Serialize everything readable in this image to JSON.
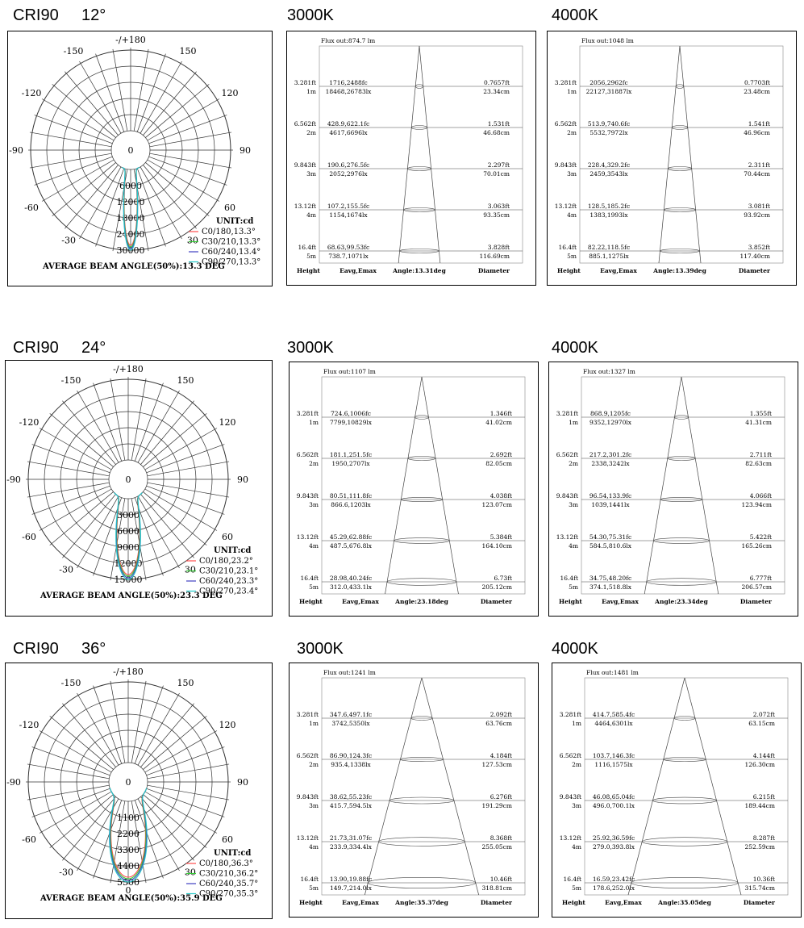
{
  "rows": [
    {
      "cri": "CRI90",
      "beam": "12°",
      "polar": {
        "ring_labels": [
          "0",
          "6000",
          "12000",
          "18000",
          "24000",
          "30000"
        ],
        "ring_max": 30000,
        "unit": "UNIT:cd",
        "legend": [
          {
            "label": "C0/180,13.3°",
            "color": "#ff4d4d"
          },
          {
            "label": "C30/210,13.3°",
            "color": "#33cc33"
          },
          {
            "label": "C60/240,13.4°",
            "color": "#4040c0"
          },
          {
            "label": "C90/270,13.3°",
            "color": "#22c8c8"
          }
        ],
        "beam_angle_deg": 13.3,
        "bottom_label": "",
        "avg": "AVERAGE BEAM ANGLE(50%):13.3 DEG"
      },
      "cones": [
        {
          "cct": "3000K",
          "flux": "Flux out:874.7 lm",
          "angle": "Angle:13.31deg",
          "levels": [
            {
              "ft": "3.281ft",
              "m": "1m",
              "fc": "1716,2488fc",
              "lx": "18468,26783lx",
              "dft": "0.7657ft",
              "dcm": "23.34cm"
            },
            {
              "ft": "6.562ft",
              "m": "2m",
              "fc": "428.9,622.1fc",
              "lx": "4617,6696lx",
              "dft": "1.531ft",
              "dcm": "46.68cm"
            },
            {
              "ft": "9.843ft",
              "m": "3m",
              "fc": "190.6,276.5fc",
              "lx": "2052,2976lx",
              "dft": "2.297ft",
              "dcm": "70.01cm"
            },
            {
              "ft": "13.12ft",
              "m": "4m",
              "fc": "107.2,155.5fc",
              "lx": "1154,1674lx",
              "dft": "3.063ft",
              "dcm": "93.35cm"
            },
            {
              "ft": "16.4ft",
              "m": "5m",
              "fc": "68.63,99.53fc",
              "lx": "738.7,1071lx",
              "dft": "3.828ft",
              "dcm": "116.69cm"
            }
          ]
        },
        {
          "cct": "4000K",
          "flux": "Flux out:1048 lm",
          "angle": "Angle:13.39deg",
          "levels": [
            {
              "ft": "3.281ft",
              "m": "1m",
              "fc": "2056,2962fc",
              "lx": "22127,31887lx",
              "dft": "0.7703ft",
              "dcm": "23.48cm"
            },
            {
              "ft": "6.562ft",
              "m": "2m",
              "fc": "513.9,740.6fc",
              "lx": "5532,7972lx",
              "dft": "1.541ft",
              "dcm": "46.96cm"
            },
            {
              "ft": "9.843ft",
              "m": "3m",
              "fc": "228.4,329.2fc",
              "lx": "2459,3543lx",
              "dft": "2.311ft",
              "dcm": "70.44cm"
            },
            {
              "ft": "13.12ft",
              "m": "4m",
              "fc": "128.5,185.2fc",
              "lx": "1383,1993lx",
              "dft": "3.081ft",
              "dcm": "93.92cm"
            },
            {
              "ft": "16.4ft",
              "m": "5m",
              "fc": "82.22,118.5fc",
              "lx": "885.1,1275lx",
              "dft": "3.852ft",
              "dcm": "117.40cm"
            }
          ]
        }
      ]
    },
    {
      "cri": "CRI90",
      "beam": "24°",
      "polar": {
        "ring_labels": [
          "0",
          "3000",
          "6000",
          "9000",
          "12000",
          "15000"
        ],
        "ring_max": 15000,
        "unit": "UNIT:cd",
        "legend": [
          {
            "label": "C0/180,23.2°",
            "color": "#ff4d4d"
          },
          {
            "label": "C30/210,23.1°",
            "color": "#33cc33"
          },
          {
            "label": "C60/240,23.3°",
            "color": "#4040c0"
          },
          {
            "label": "C90/270,23.4°",
            "color": "#22c8c8"
          }
        ],
        "beam_angle_deg": 23.3,
        "bottom_label": "",
        "avg": "AVERAGE BEAM ANGLE(50%):23.3 DEG"
      },
      "cones": [
        {
          "cct": "3000K",
          "flux": "Flux out:1107 lm",
          "angle": "Angle:23.18deg",
          "levels": [
            {
              "ft": "3.281ft",
              "m": "1m",
              "fc": "724.6,1006fc",
              "lx": "7799,10829lx",
              "dft": "1.346ft",
              "dcm": "41.02cm"
            },
            {
              "ft": "6.562ft",
              "m": "2m",
              "fc": "181.1,251.5fc",
              "lx": "1950,2707lx",
              "dft": "2.692ft",
              "dcm": "82.05cm"
            },
            {
              "ft": "9.843ft",
              "m": "3m",
              "fc": "80.51,111.8fc",
              "lx": "866.6,1203lx",
              "dft": "4.038ft",
              "dcm": "123.07cm"
            },
            {
              "ft": "13.12ft",
              "m": "4m",
              "fc": "45.29,62.88fc",
              "lx": "487.5,676.8lx",
              "dft": "5.384ft",
              "dcm": "164.10cm"
            },
            {
              "ft": "16.4ft",
              "m": "5m",
              "fc": "28.98,40.24fc",
              "lx": "312.0,433.1lx",
              "dft": "6.73ft",
              "dcm": "205.12cm"
            }
          ]
        },
        {
          "cct": "4000K",
          "flux": "Flux out:1327 lm",
          "angle": "Angle:23.34deg",
          "levels": [
            {
              "ft": "3.281ft",
              "m": "1m",
              "fc": "868.9,1205fc",
              "lx": "9352,12970lx",
              "dft": "1.355ft",
              "dcm": "41.31cm"
            },
            {
              "ft": "6.562ft",
              "m": "2m",
              "fc": "217.2,301.2fc",
              "lx": "2338,3242lx",
              "dft": "2.711ft",
              "dcm": "82.63cm"
            },
            {
              "ft": "9.843ft",
              "m": "3m",
              "fc": "96.54,133.9fc",
              "lx": "1039,1441lx",
              "dft": "4.066ft",
              "dcm": "123.94cm"
            },
            {
              "ft": "13.12ft",
              "m": "4m",
              "fc": "54.30,75.31fc",
              "lx": "584.5,810.6lx",
              "dft": "5.422ft",
              "dcm": "165.26cm"
            },
            {
              "ft": "16.4ft",
              "m": "5m",
              "fc": "34.75,48.20fc",
              "lx": "374.1,518.8lx",
              "dft": "6.777ft",
              "dcm": "206.57cm"
            }
          ]
        }
      ]
    },
    {
      "cri": "CRI90",
      "beam": "36°",
      "polar": {
        "ring_labels": [
          "0",
          "1100",
          "2200",
          "3300",
          "4400",
          "5500"
        ],
        "ring_max": 5500,
        "unit": "UNIT:cd",
        "legend": [
          {
            "label": "C0/180,36.3°",
            "color": "#ff4d4d"
          },
          {
            "label": "C30/210,36.2°",
            "color": "#33cc33"
          },
          {
            "label": "C60/240,35.7°",
            "color": "#4040c0"
          },
          {
            "label": "C90/270,35.3°",
            "color": "#22c8c8"
          }
        ],
        "beam_angle_deg": 35.9,
        "bottom_label": "0",
        "avg": "AVERAGE BEAM ANGLE(50%):35.9 DEG"
      },
      "cones": [
        {
          "cct": "3000K",
          "flux": "Flux out:1241 lm",
          "angle": "Angle:35.37deg",
          "levels": [
            {
              "ft": "3.281ft",
              "m": "1m",
              "fc": "347.6,497.1fc",
              "lx": "3742,5350lx",
              "dft": "2.092ft",
              "dcm": "63.76cm"
            },
            {
              "ft": "6.562ft",
              "m": "2m",
              "fc": "86.90,124.3fc",
              "lx": "935.4,1338lx",
              "dft": "4.184ft",
              "dcm": "127.53cm"
            },
            {
              "ft": "9.843ft",
              "m": "3m",
              "fc": "38.62,55.23fc",
              "lx": "415.7,594.5lx",
              "dft": "6.276ft",
              "dcm": "191.29cm"
            },
            {
              "ft": "13.12ft",
              "m": "4m",
              "fc": "21.73,31.07fc",
              "lx": "233.9,334.4lx",
              "dft": "8.368ft",
              "dcm": "255.05cm"
            },
            {
              "ft": "16.4ft",
              "m": "5m",
              "fc": "13.90,19.88fc",
              "lx": "149.7,214.0lx",
              "dft": "10.46ft",
              "dcm": "318.81cm"
            }
          ]
        },
        {
          "cct": "4000K",
          "flux": "Flux out:1481 lm",
          "angle": "Angle:35.05deg",
          "levels": [
            {
              "ft": "3.281ft",
              "m": "1m",
              "fc": "414.7,585.4fc",
              "lx": "4464,6301lx",
              "dft": "2.072ft",
              "dcm": "63.15cm"
            },
            {
              "ft": "6.562ft",
              "m": "2m",
              "fc": "103.7,146.3fc",
              "lx": "1116,1575lx",
              "dft": "4.144ft",
              "dcm": "126.30cm"
            },
            {
              "ft": "9.843ft",
              "m": "3m",
              "fc": "46.08,65.04fc",
              "lx": "496.0,700.1lx",
              "dft": "6.215ft",
              "dcm": "189.44cm"
            },
            {
              "ft": "13.12ft",
              "m": "4m",
              "fc": "25.92,36.59fc",
              "lx": "279.0,393.8lx",
              "dft": "8.287ft",
              "dcm": "252.59cm"
            },
            {
              "ft": "16.4ft",
              "m": "5m",
              "fc": "16.59,23.42fc",
              "lx": "178.6,252.0lx",
              "dft": "10.36ft",
              "dcm": "315.74cm"
            }
          ]
        }
      ]
    }
  ],
  "common": {
    "polar_angles": [
      "-/+180",
      "-150",
      "150",
      "-120",
      "120",
      "-90",
      "90",
      "-60",
      "60",
      "-30",
      "30"
    ],
    "cone_headers": {
      "height": "Height",
      "eavg": "Eavg,Emax",
      "diameter": "Diameter"
    }
  },
  "chart_data": [
    {
      "type": "polar",
      "title": "CRI90 12°",
      "unit": "cd",
      "r_max": 30000,
      "beam_angle_avg_deg": 13.3,
      "series": [
        {
          "name": "C0/180",
          "beam_angle": 13.3
        },
        {
          "name": "C30/210",
          "beam_angle": 13.3
        },
        {
          "name": "C60/240",
          "beam_angle": 13.4
        },
        {
          "name": "C90/270",
          "beam_angle": 13.3
        }
      ]
    },
    {
      "type": "table",
      "title": "3000K",
      "flux_lm": 874.7,
      "angle_deg": 13.31,
      "heights_m": [
        1,
        2,
        3,
        4,
        5
      ],
      "diameter_cm": [
        23.34,
        46.68,
        70.01,
        93.35,
        116.69
      ]
    },
    {
      "type": "table",
      "title": "4000K",
      "flux_lm": 1048,
      "angle_deg": 13.39,
      "heights_m": [
        1,
        2,
        3,
        4,
        5
      ],
      "diameter_cm": [
        23.48,
        46.96,
        70.44,
        93.92,
        117.4
      ]
    },
    {
      "type": "polar",
      "title": "CRI90 24°",
      "unit": "cd",
      "r_max": 15000,
      "beam_angle_avg_deg": 23.3,
      "series": [
        {
          "name": "C0/180",
          "beam_angle": 23.2
        },
        {
          "name": "C30/210",
          "beam_angle": 23.1
        },
        {
          "name": "C60/240",
          "beam_angle": 23.3
        },
        {
          "name": "C90/270",
          "beam_angle": 23.4
        }
      ]
    },
    {
      "type": "table",
      "title": "3000K",
      "flux_lm": 1107,
      "angle_deg": 23.18,
      "heights_m": [
        1,
        2,
        3,
        4,
        5
      ],
      "diameter_cm": [
        41.02,
        82.05,
        123.07,
        164.1,
        205.12
      ]
    },
    {
      "type": "table",
      "title": "4000K",
      "flux_lm": 1327,
      "angle_deg": 23.34,
      "heights_m": [
        1,
        2,
        3,
        4,
        5
      ],
      "diameter_cm": [
        41.31,
        82.63,
        123.94,
        165.26,
        206.57
      ]
    },
    {
      "type": "polar",
      "title": "CRI90 36°",
      "unit": "cd",
      "r_max": 5500,
      "beam_angle_avg_deg": 35.9,
      "series": [
        {
          "name": "C0/180",
          "beam_angle": 36.3
        },
        {
          "name": "C30/210",
          "beam_angle": 36.2
        },
        {
          "name": "C60/240",
          "beam_angle": 35.7
        },
        {
          "name": "C90/270",
          "beam_angle": 35.3
        }
      ]
    },
    {
      "type": "table",
      "title": "3000K",
      "flux_lm": 1241,
      "angle_deg": 35.37,
      "heights_m": [
        1,
        2,
        3,
        4,
        5
      ],
      "diameter_cm": [
        63.76,
        127.53,
        191.29,
        255.05,
        318.81
      ]
    },
    {
      "type": "table",
      "title": "4000K",
      "flux_lm": 1481,
      "angle_deg": 35.05,
      "heights_m": [
        1,
        2,
        3,
        4,
        5
      ],
      "diameter_cm": [
        63.15,
        126.3,
        189.44,
        252.59,
        315.74
      ]
    }
  ]
}
